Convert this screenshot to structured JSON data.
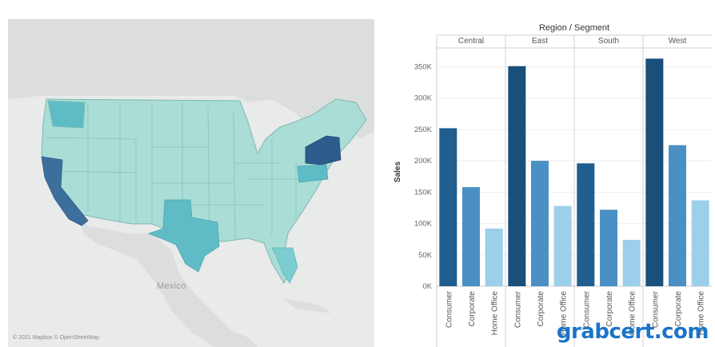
{
  "map": {
    "country_label": "Mexico",
    "attribution": "© 2021 Mapbox © OpenStreetMap",
    "colors": {
      "land_background": "#d9dcdc",
      "water": "#e9eaea",
      "state_low": "#a9ddd5",
      "state_mid": "#5fbcc6",
      "state_high": "#3d6f9d",
      "state_top": "#2d5b8c"
    },
    "highlighted_states": [
      "California",
      "Texas",
      "New York",
      "Washington",
      "Pennsylvania",
      "Florida"
    ]
  },
  "chart_data": {
    "type": "bar",
    "title": "Region / Segment",
    "ylabel": "Sales",
    "xlabel": "",
    "ylim": [
      0,
      380000
    ],
    "yticks": [
      "0K",
      "50K",
      "100K",
      "150K",
      "200K",
      "250K",
      "300K",
      "350K"
    ],
    "ytick_values": [
      0,
      50000,
      100000,
      150000,
      200000,
      250000,
      300000,
      350000
    ],
    "segments": [
      "Consumer",
      "Corporate",
      "Home Office"
    ],
    "segment_colors": [
      "#1f5e8e",
      "#4a90c4",
      "#9ccfea"
    ],
    "top_segment_colors": [
      "#1a4f7a",
      "#4a90c4",
      "#9ccfea"
    ],
    "regions": [
      {
        "name": "Central",
        "values": [
          252000,
          158000,
          92000
        ]
      },
      {
        "name": "East",
        "values": [
          351000,
          200000,
          128000
        ]
      },
      {
        "name": "South",
        "values": [
          196000,
          122000,
          74000
        ]
      },
      {
        "name": "West",
        "values": [
          363000,
          225000,
          137000
        ]
      }
    ]
  },
  "watermark": "grabcert.com"
}
